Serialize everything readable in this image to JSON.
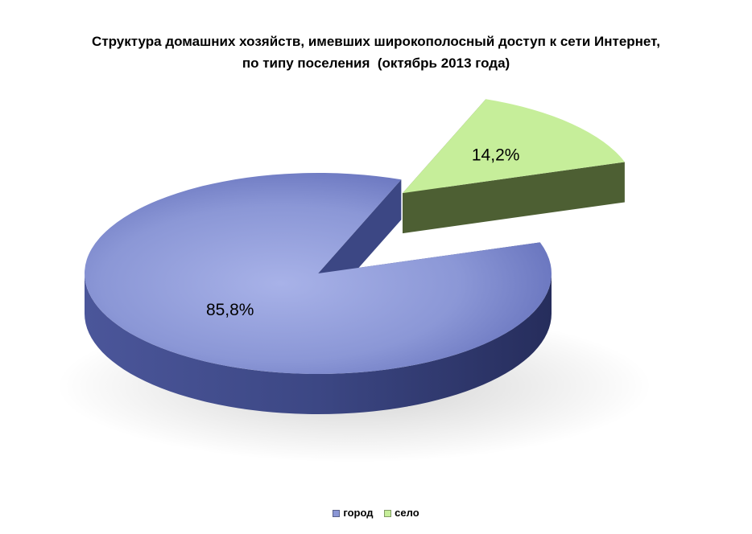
{
  "chart_data": {
    "type": "pie",
    "title_lines": [
      "Структура домашних хозяйств, имевших широкополосный доступ к сети Интернет,",
      "по типу поселения  (октябрь 2013 года)"
    ],
    "categories": [
      "город",
      "село"
    ],
    "values": [
      85.8,
      14.2
    ],
    "data_labels": [
      "85,8%",
      "14,2%"
    ],
    "colors": [
      "#8b97d6",
      "#c6ee9a"
    ],
    "side_colors": [
      "#3c4784",
      "#4d5f33"
    ],
    "legend_position": "bottom",
    "style": "3d-exploded"
  }
}
